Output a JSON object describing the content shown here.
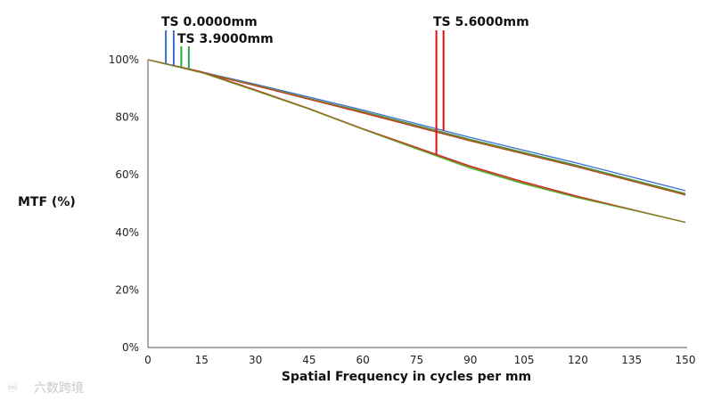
{
  "chart_data": {
    "type": "line",
    "title": "",
    "xlabel": "Spatial Frequency in cycles per mm",
    "ylabel": "MTF (%)",
    "xlim": [
      0,
      150
    ],
    "ylim": [
      0,
      100
    ],
    "x_ticks": [
      0,
      15,
      30,
      45,
      60,
      75,
      90,
      105,
      120,
      135,
      150
    ],
    "y_ticks": [
      0,
      20,
      40,
      60,
      80,
      100
    ],
    "y_tick_suffix": "%",
    "grid": false,
    "series": [
      {
        "color": "#3b6fd6",
        "x": [
          0,
          30,
          60,
          90,
          120,
          150
        ],
        "y": [
          100,
          91.5,
          82.5,
          73,
          64,
          54.5
        ]
      },
      {
        "color": "#3a8a3a",
        "x": [
          0,
          30,
          60,
          90,
          120,
          150
        ],
        "y": [
          100,
          91,
          82,
          72.3,
          63.2,
          53.5
        ]
      },
      {
        "color": "#d62020",
        "x": [
          0,
          30,
          60,
          90,
          120,
          150
        ],
        "y": [
          100,
          91,
          81.5,
          71.8,
          62.7,
          53
        ]
      },
      {
        "color": "#8a7a20",
        "x": [
          0,
          30,
          60,
          90,
          120,
          150
        ],
        "y": [
          100,
          91.2,
          81.8,
          72,
          62.9,
          53.2
        ]
      },
      {
        "color": "#d62020",
        "x": [
          0,
          15,
          30,
          45,
          60,
          75,
          90,
          105,
          120,
          135,
          150
        ],
        "y": [
          100,
          95.8,
          89.5,
          83,
          76,
          69.5,
          63,
          57.5,
          52.5,
          48,
          43.5
        ]
      },
      {
        "color": "#4cc94c",
        "x": [
          0,
          15,
          30,
          45,
          60,
          75,
          90,
          105,
          120,
          135,
          150
        ],
        "y": [
          100,
          95.5,
          89.2,
          82.8,
          75.8,
          69,
          62.3,
          56.8,
          52,
          47.8,
          43.5
        ]
      },
      {
        "color": "#8a7a20",
        "x": [
          0,
          15,
          30,
          45,
          60,
          75,
          90,
          105,
          120,
          135,
          150
        ],
        "y": [
          100,
          95.6,
          89.3,
          82.9,
          75.9,
          69.2,
          62.6,
          57.1,
          52.2,
          47.9,
          43.5
        ]
      }
    ],
    "markers": [
      {
        "label": "",
        "color": "#3b6fd6",
        "x": [
          5,
          7.2
        ]
      },
      {
        "label": "",
        "color": "#22aa44",
        "x": [
          9.3,
          11.4
        ]
      },
      {
        "label": "",
        "color": "#e01010",
        "x": [
          80.5,
          82.5
        ]
      }
    ],
    "annotations": [
      "TS 0.0000mm",
      "TS 3.9000mm",
      "TS 5.6000mm"
    ]
  },
  "watermark": "六数跨境"
}
